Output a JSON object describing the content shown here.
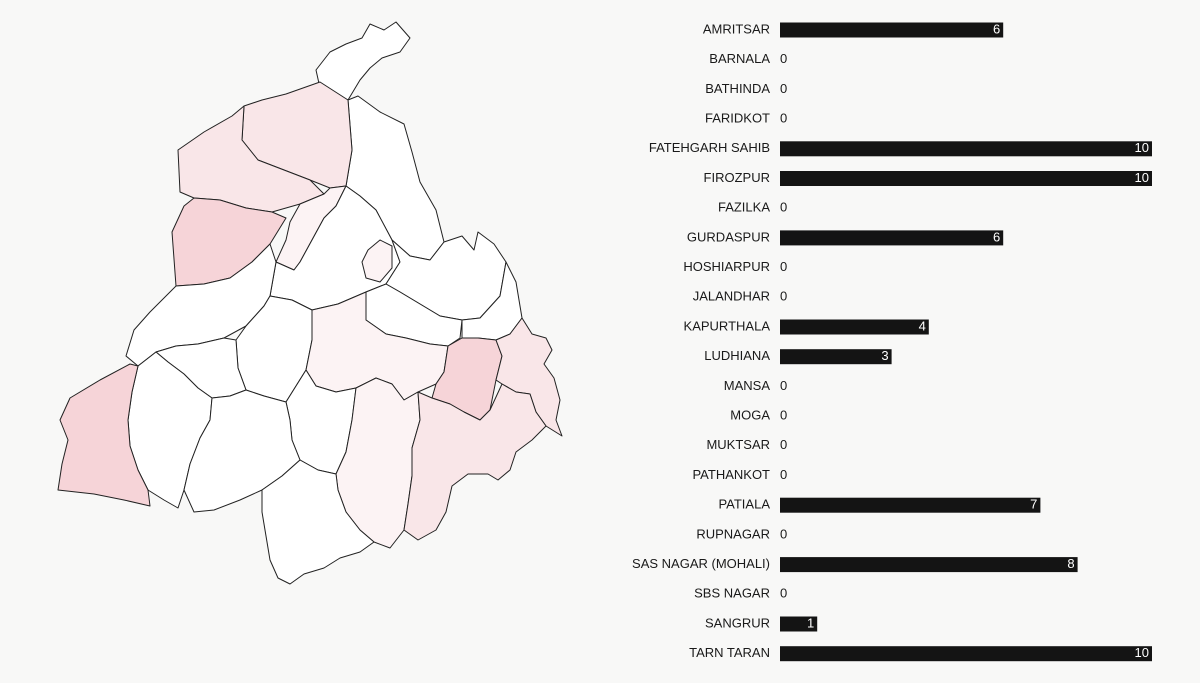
{
  "colors": {
    "background": "#f8f8f7",
    "bar": "#141414",
    "map_stroke": "#222222",
    "map_fill_scale": [
      "#ffffff",
      "#fcf3f4",
      "#f9e6e8",
      "#f6d4d8"
    ]
  },
  "chart_data": {
    "type": "bar",
    "orientation": "horizontal",
    "categories": [
      "AMRITSAR",
      "BARNALA",
      "BATHINDA",
      "FARIDKOT",
      "FATEHGARH SAHIB",
      "FIROZPUR",
      "FAZILKA",
      "GURDASPUR",
      "HOSHIARPUR",
      "JALANDHAR",
      "KAPURTHALA",
      "LUDHIANA",
      "MANSA",
      "MOGA",
      "MUKTSAR",
      "PATHANKOT",
      "PATIALA",
      "RUPNAGAR",
      "SAS NAGAR (MOHALI)",
      "SBS NAGAR",
      "SANGRUR",
      "TARN TARAN"
    ],
    "values": [
      6,
      0,
      0,
      0,
      10,
      10,
      0,
      6,
      0,
      0,
      4,
      3,
      0,
      0,
      0,
      0,
      7,
      0,
      8,
      0,
      1,
      10
    ],
    "xlim": [
      0,
      10
    ],
    "grid": false,
    "legend": "none",
    "title": "",
    "xlabel": "",
    "ylabel": ""
  }
}
